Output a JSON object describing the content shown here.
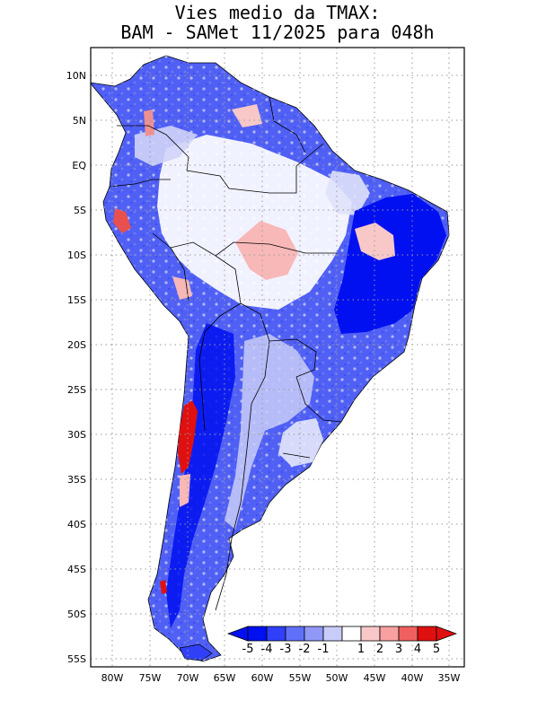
{
  "title": {
    "line1": "Vies medio da TMAX:",
    "line2": "BAM - SAMet 11/2025  para 048h"
  },
  "map": {
    "region": "South America",
    "lon_range": [
      -83,
      -34
    ],
    "lat_range": [
      -56,
      13
    ],
    "lat_ticks": [
      "10N",
      "5N",
      "EQ",
      "5S",
      "10S",
      "15S",
      "20S",
      "25S",
      "30S",
      "35S",
      "40S",
      "45S",
      "50S",
      "55S"
    ],
    "lon_ticks": [
      "80W",
      "75W",
      "70W",
      "65W",
      "60W",
      "55W",
      "50W",
      "45W",
      "40W",
      "35W"
    ],
    "grid": "dotted"
  },
  "colorbar": {
    "labels": [
      "-5",
      "-4",
      "-3",
      "-2",
      "-1",
      "1",
      "2",
      "3",
      "4",
      "5"
    ],
    "colors": [
      "#0010f0",
      "#3040f8",
      "#6070f8",
      "#9098f8",
      "#c8ccf8",
      "#ffffff",
      "#f8c8c8",
      "#f8a0a0",
      "#f06060",
      "#e01010"
    ]
  }
}
